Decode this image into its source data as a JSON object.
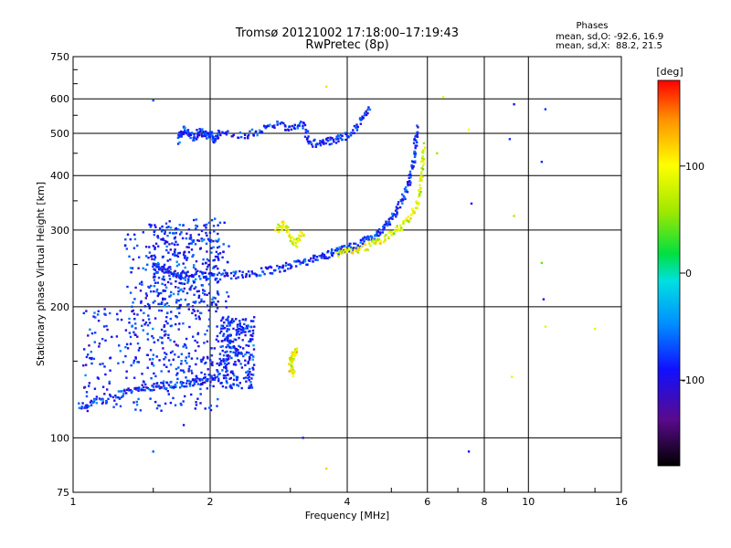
{
  "chart_data": {
    "type": "scatter",
    "title": "Tromsø 20121002 17:18:00–17:19:43",
    "subtitle": "RwPretec (8p)",
    "xlabel": "Frequency [MHz]",
    "ylabel": "Stationary phase Virtual Height [km]",
    "x_scale": "log",
    "y_scale": "log",
    "xlim": [
      1,
      16
    ],
    "ylim": [
      75,
      750
    ],
    "x_ticks": [
      1,
      2,
      4,
      6,
      8,
      10,
      16
    ],
    "y_ticks": [
      75,
      100,
      200,
      300,
      400,
      500,
      600,
      750
    ],
    "grid_x": [
      2,
      4,
      6,
      8,
      10
    ],
    "grid_y": [
      100,
      200,
      300,
      400,
      500,
      600
    ],
    "grid": true,
    "stats": {
      "heading": "Phases",
      "line_o": "mean, sd,O: -92.6, 16.9",
      "line_x": "mean, sd,X:  88.2, 21.5"
    },
    "colorbar": {
      "label": "[deg]",
      "ticks": [
        -100,
        0,
        100
      ],
      "range": [
        -180,
        180
      ],
      "placement": "right"
    },
    "series": [
      {
        "mode": "O",
        "phase_mean": -92.6,
        "phase_sd": 16.9,
        "traces": [
          {
            "points": [
              [
                1.03,
                118
              ],
              [
                1.1,
                120
              ],
              [
                1.2,
                123
              ],
              [
                1.3,
                127
              ],
              [
                1.4,
                130
              ],
              [
                1.5,
                131
              ],
              [
                1.6,
                132
              ],
              [
                1.7,
                133
              ],
              [
                1.8,
                134
              ],
              [
                1.9,
                135
              ],
              [
                2.0,
                136
              ],
              [
                2.1,
                138
              ]
            ]
          },
          {
            "points": [
              [
                1.5,
                250
              ],
              [
                1.55,
                245
              ],
              [
                1.6,
                241
              ],
              [
                1.7,
                238
              ],
              [
                1.8,
                236
              ],
              [
                2.0,
                235
              ],
              [
                2.2,
                236
              ],
              [
                2.4,
                238
              ],
              [
                2.6,
                241
              ],
              [
                2.8,
                244
              ],
              [
                3.0,
                248
              ],
              [
                3.2,
                253
              ],
              [
                3.4,
                258
              ],
              [
                3.6,
                263
              ],
              [
                3.8,
                268
              ],
              [
                4.0,
                272
              ],
              [
                4.2,
                277
              ],
              [
                4.4,
                284
              ],
              [
                4.6,
                292
              ],
              [
                4.8,
                302
              ],
              [
                5.0,
                318
              ],
              [
                5.2,
                340
              ],
              [
                5.4,
                370
              ],
              [
                5.5,
                395
              ],
              [
                5.6,
                430
              ],
              [
                5.65,
                470
              ],
              [
                5.7,
                520
              ]
            ]
          },
          {
            "points": [
              [
                1.7,
                480
              ],
              [
                1.75,
                510
              ],
              [
                1.8,
                500
              ],
              [
                1.85,
                490
              ],
              [
                1.9,
                505
              ],
              [
                1.95,
                495
              ],
              [
                2.0,
                500
              ],
              [
                2.05,
                485
              ],
              [
                2.1,
                500
              ],
              [
                2.4,
                495
              ],
              [
                2.6,
                510
              ],
              [
                2.8,
                525
              ],
              [
                3.0,
                515
              ],
              [
                3.2,
                525
              ],
              [
                3.3,
                475
              ],
              [
                3.5,
                475
              ],
              [
                3.7,
                480
              ],
              [
                3.9,
                490
              ],
              [
                4.1,
                505
              ],
              [
                4.3,
                535
              ],
              [
                4.5,
                565
              ]
            ]
          }
        ],
        "scatter_regions": [
          {
            "x": [
              1.05,
              2.1
            ],
            "y": [
              115,
              200
            ]
          },
          {
            "x": [
              1.3,
              2.2
            ],
            "y": [
              140,
              320
            ]
          },
          {
            "x": [
              1.5,
              2.1
            ],
            "y": [
              200,
              310
            ]
          },
          {
            "x": [
              2.1,
              2.5
            ],
            "y": [
              130,
              190
            ]
          }
        ],
        "outliers": [
          [
            1.5,
            93
          ],
          [
            1.5,
            595
          ],
          [
            1.75,
            107
          ],
          [
            3.2,
            100
          ],
          [
            7.4,
            93
          ],
          [
            10.8,
            208
          ],
          [
            7.5,
            345
          ],
          [
            9.3,
            583
          ],
          [
            10.9,
            568
          ],
          [
            10.7,
            430
          ],
          [
            9.1,
            485
          ]
        ]
      },
      {
        "mode": "X",
        "phase_mean": 88.2,
        "phase_sd": 21.5,
        "traces": [
          {
            "points": [
              [
                3.8,
                265
              ],
              [
                4.0,
                268
              ],
              [
                4.3,
                272
              ],
              [
                4.6,
                280
              ],
              [
                4.9,
                290
              ],
              [
                5.2,
                302
              ],
              [
                5.5,
                320
              ],
              [
                5.7,
                345
              ],
              [
                5.8,
                380
              ],
              [
                5.85,
                420
              ],
              [
                5.9,
                470
              ]
            ]
          },
          {
            "points": [
              [
                2.8,
                300
              ],
              [
                2.9,
                310
              ],
              [
                3.0,
                290
              ],
              [
                3.1,
                280
              ],
              [
                3.2,
                295
              ]
            ]
          },
          {
            "points": [
              [
                3.0,
                150
              ],
              [
                3.05,
                155
              ],
              [
                3.1,
                160
              ],
              [
                3.0,
                145
              ],
              [
                3.05,
                140
              ]
            ]
          }
        ],
        "outliers": [
          [
            3.6,
            85
          ],
          [
            6.3,
            450
          ],
          [
            7.4,
            510
          ],
          [
            9.3,
            323
          ],
          [
            10.7,
            252
          ],
          [
            9.2,
            138
          ],
          [
            10.9,
            180
          ],
          [
            14.0,
            178
          ],
          [
            3.6,
            640
          ],
          [
            6.5,
            605
          ]
        ]
      }
    ]
  },
  "palette": {
    "background": "#ffffff",
    "axis": "#000000",
    "grid": "#000000",
    "colorbar_stops": [
      "#000000",
      "#5a0a8c",
      "#1010ff",
      "#0090ff",
      "#00e0e0",
      "#00e040",
      "#a0e800",
      "#ffff00",
      "#ff9000",
      "#ff0000"
    ]
  }
}
